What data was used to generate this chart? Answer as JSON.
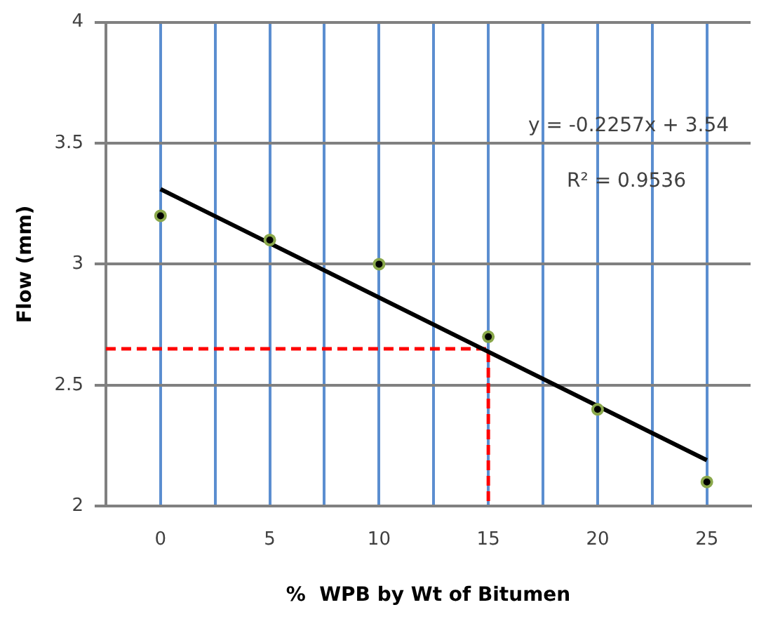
{
  "chart_data": {
    "type": "scatter",
    "xlabel": "%  WPB by Wt of Bitumen",
    "ylabel": "Flow (mm)",
    "xlim": [
      -2.5,
      27
    ],
    "xticks": [
      0,
      {
        "value": 2.5,
        "label": null
      },
      5,
      {
        "value": 7.5,
        "label": null
      },
      10,
      {
        "value": 12.5,
        "label": null
      },
      15,
      {
        "value": 17.5,
        "label": null
      },
      20,
      {
        "value": 22.5,
        "label": null
      },
      25
    ],
    "ylim": [
      2,
      4
    ],
    "yticks": [
      2,
      2.5,
      3,
      3.5,
      4
    ],
    "grid": true,
    "annotations": [
      "y = -0.2257x + 3.54",
      "R² = 0.9536"
    ],
    "series": [
      {
        "x": [
          0,
          5,
          10,
          15,
          20,
          25
        ],
        "values": [
          3.2,
          3.1,
          3.0,
          2.7,
          2.4,
          2.1
        ],
        "color": "#000000",
        "marker": "circle"
      },
      {
        "type": "line",
        "x": [
          0,
          25
        ],
        "values": [
          3.31,
          2.19
        ],
        "color": "#000000",
        "marker": "none"
      },
      {
        "type": "line",
        "x": [
          -2.5,
          15,
          15
        ],
        "values": [
          2.65,
          2.65,
          2
        ],
        "color": "#ff0000",
        "line_style": "dashed",
        "marker": "none"
      }
    ]
  }
}
